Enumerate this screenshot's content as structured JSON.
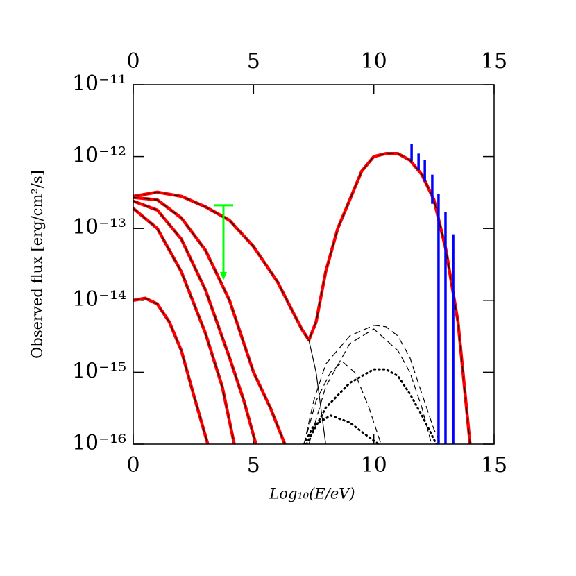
{
  "chart_data": {
    "type": "line",
    "x_label": "Log₁₀(E/eV)",
    "y_label": "Observed flux [erg/cm²/s]",
    "xlim": [
      0,
      15
    ],
    "xticks": [
      0,
      5,
      10,
      15
    ],
    "ylim": [
      1e-16,
      1e-11
    ],
    "log_y": true,
    "yticks": [
      {
        "value": 1e-16,
        "label": "10⁻¹⁶"
      },
      {
        "value": 1e-15,
        "label": "10⁻¹⁵"
      },
      {
        "value": 1e-14,
        "label": "10⁻¹⁴"
      },
      {
        "value": 1e-13,
        "label": "10⁻¹³"
      },
      {
        "value": 1e-12,
        "label": "10⁻¹²"
      },
      {
        "value": 1e-11,
        "label": "10⁻¹¹"
      }
    ],
    "series": [
      {
        "color": "#ff0000",
        "dash_color": "#000000",
        "line_style": "solid",
        "x": [
          0,
          1,
          2,
          3,
          4,
          5,
          6,
          7,
          7.3,
          7.6,
          8,
          8.5,
          9,
          9.5,
          10,
          10.5,
          11,
          11.5,
          12,
          12.5,
          13,
          13.5,
          14
        ],
        "values": [
          2.8e-13,
          3.2e-13,
          2.8e-13,
          2e-13,
          1.3e-13,
          5.6e-14,
          1.8e-14,
          4e-15,
          2.8e-15,
          5e-15,
          2.5e-14,
          1e-13,
          2.5e-13,
          6.3e-13,
          1e-12,
          1.1e-12,
          1.1e-12,
          8.9e-13,
          5.6e-13,
          2.5e-13,
          5e-14,
          5e-15,
          1e-16
        ]
      },
      {
        "color": "#ff0000",
        "dash_color": "#000000",
        "line_style": "solid",
        "x": [
          0,
          0.5,
          1,
          1.5,
          2,
          2.5,
          3.1
        ],
        "values": [
          1e-14,
          1.07e-14,
          8.9e-15,
          5e-15,
          2e-15,
          5e-16,
          1e-16
        ]
      },
      {
        "color": "#ff0000",
        "dash_color": "#000000",
        "line_style": "solid",
        "x": [
          0,
          1,
          2,
          3,
          3.7,
          4.2
        ],
        "values": [
          1.9e-13,
          1e-13,
          2.5e-14,
          3.5e-15,
          6.3e-16,
          1e-16
        ]
      },
      {
        "color": "#ff0000",
        "dash_color": "#000000",
        "line_style": "solid",
        "x": [
          0,
          1,
          2,
          3,
          4,
          4.6,
          5.1
        ],
        "values": [
          2.4e-13,
          1.8e-13,
          7.1e-14,
          1.4e-14,
          1.6e-15,
          4e-16,
          1e-16
        ]
      },
      {
        "color": "#ff0000",
        "dash_color": "#000000",
        "line_style": "solid",
        "x": [
          0,
          1,
          2,
          3,
          4,
          5,
          5.7,
          6.3
        ],
        "values": [
          2.7e-13,
          2.5e-13,
          1.4e-13,
          5e-14,
          1e-14,
          1e-15,
          3.2e-16,
          1e-16
        ]
      },
      {
        "color": "#000000",
        "line_style": "dashed",
        "x": [
          7.1,
          7.5,
          8,
          9,
          10,
          10.5,
          11,
          11.5,
          12,
          12.5,
          12.8
        ],
        "values": [
          1e-16,
          4e-16,
          1.3e-15,
          3.2e-15,
          4.5e-15,
          4.3e-15,
          3.2e-15,
          1.6e-15,
          5e-16,
          1.6e-16,
          1e-16
        ]
      },
      {
        "color": "#000000",
        "line_style": "dashed",
        "x": [
          7.3,
          8,
          9,
          10,
          11,
          11.5,
          12,
          12.4
        ],
        "values": [
          1e-16,
          6.3e-16,
          2.5e-15,
          4e-15,
          2e-15,
          1e-15,
          3.2e-16,
          1e-16
        ]
      },
      {
        "color": "#000000",
        "line_style": "dashed",
        "x": [
          7.1,
          7.6,
          8.2,
          8.7,
          9.2,
          9.8,
          10.3
        ],
        "values": [
          1e-16,
          4e-16,
          1e-15,
          1.4e-15,
          1e-15,
          3.2e-16,
          1e-16
        ]
      },
      {
        "color": "#000000",
        "line_style": "dotted",
        "x": [
          7.2,
          8,
          9,
          10,
          10.5,
          11,
          11.5,
          12,
          12.6
        ],
        "values": [
          1e-16,
          3.2e-16,
          7.1e-16,
          1.1e-15,
          1.1e-15,
          8.9e-16,
          5e-16,
          2.5e-16,
          1e-16
        ]
      },
      {
        "color": "#000000",
        "line_style": "dotted",
        "x": [
          7.1,
          7.5,
          8.2,
          9,
          9.6,
          10.2
        ],
        "values": [
          1e-16,
          1.8e-16,
          2.5e-16,
          2e-16,
          1.4e-16,
          1e-16
        ]
      },
      {
        "color": "#000000",
        "line_style": "thin",
        "x": [
          7.3,
          7.6,
          8.0
        ],
        "values": [
          2.8e-15,
          1e-15,
          1e-16
        ]
      }
    ],
    "errorbars": {
      "color": "#0000ff",
      "x": [
        11.57,
        11.86,
        12.12,
        12.43,
        12.69,
        12.98,
        13.3
      ],
      "low": [
        8.7e-13,
        6.5e-13,
        4.5e-13,
        2.2e-13,
        1e-16,
        1e-16,
        1e-16
      ],
      "high": [
        1.5e-12,
        1.1e-12,
        8.9e-13,
        5.6e-13,
        3e-13,
        1.7e-13,
        8.3e-14
      ]
    },
    "upper_limit": {
      "color": "#00ff00",
      "x": 3.75,
      "value": 2.1e-13
    }
  }
}
